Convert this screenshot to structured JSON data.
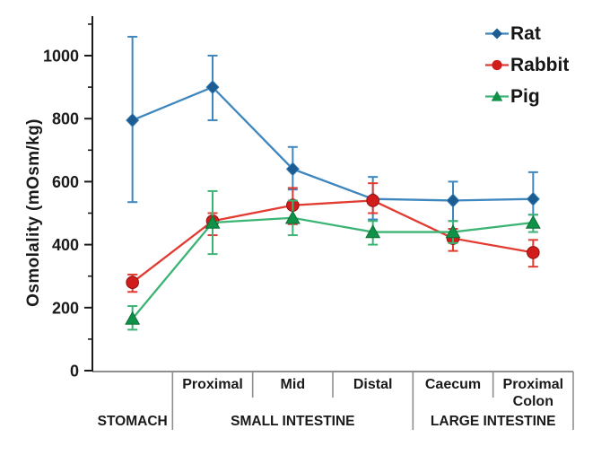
{
  "chart_data": {
    "type": "line",
    "title": "",
    "ylabel": "Osmolality (mOsm/kg)",
    "ylim": [
      0,
      1100
    ],
    "yticks": [
      0,
      200,
      400,
      600,
      800,
      1000
    ],
    "yminorticks": [
      100,
      300,
      500,
      700,
      900,
      1100
    ],
    "grid": false,
    "legend_position": "top-right",
    "axis_color": "#8f8f8f",
    "text_color": "#1a1a1a",
    "categories": [
      "Stomach",
      "Small intestine – Proximal",
      "Small intestine – Mid",
      "Small intestine – Distal",
      "Caecum",
      "Proximal Colon"
    ],
    "sub_labels": [
      [],
      [
        "Proximal"
      ],
      [
        "Mid"
      ],
      [
        "Distal"
      ],
      [
        "Caecum"
      ],
      [
        "Proximal",
        "Colon"
      ]
    ],
    "group_labels": [
      {
        "label": "STOMACH",
        "start": 0,
        "end": 1
      },
      {
        "label": "SMALL INTESTINE",
        "start": 1,
        "end": 4
      },
      {
        "label": "LARGE INTESTINE",
        "start": 4,
        "end": 6
      }
    ],
    "series": [
      {
        "name": "Rat",
        "marker": "diamond",
        "marker_color": "#1c5c93",
        "line_color": "#3e87be",
        "values": [
          795,
          900,
          640,
          545,
          540,
          545
        ],
        "err_low": [
          535,
          795,
          575,
          480,
          475,
          495
        ],
        "err_high": [
          1060,
          1000,
          710,
          615,
          600,
          630
        ]
      },
      {
        "name": "Rabbit",
        "marker": "circle",
        "marker_color": "#d11c1c",
        "line_color": "#e23b31",
        "values": [
          280,
          475,
          525,
          540,
          420,
          375
        ],
        "err_low": [
          250,
          430,
          465,
          500,
          380,
          330
        ],
        "err_high": [
          305,
          500,
          580,
          595,
          450,
          415
        ]
      },
      {
        "name": "Pig",
        "marker": "triangle",
        "marker_color": "#0f9147",
        "line_color": "#3cb474",
        "values": [
          165,
          470,
          485,
          440,
          440,
          470
        ],
        "err_low": [
          130,
          370,
          430,
          400,
          405,
          440
        ],
        "err_high": [
          205,
          570,
          540,
          475,
          475,
          495
        ]
      }
    ]
  }
}
